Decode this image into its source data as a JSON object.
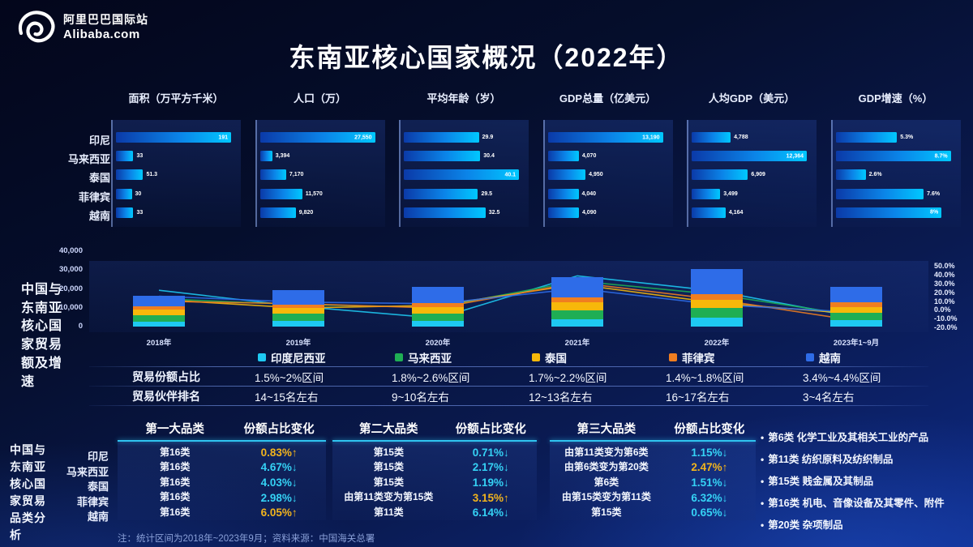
{
  "header": {
    "logo_cn": "阿里巴巴国际站",
    "logo_en": "Alibaba.com",
    "title": "东南亚核心国家概况（2022年）"
  },
  "countries": [
    "印尼",
    "马来西亚",
    "泰国",
    "菲律宾",
    "越南"
  ],
  "chart_data": [
    {
      "type": "bar",
      "orientation": "horizontal",
      "title": "面积（万平方千米）",
      "categories": [
        "印尼",
        "马来西亚",
        "泰国",
        "菲律宾",
        "越南"
      ],
      "values": [
        191,
        33,
        51.3,
        30,
        33
      ],
      "labels": [
        "191",
        "33",
        "51.3",
        "30",
        "33"
      ]
    },
    {
      "type": "bar",
      "orientation": "horizontal",
      "title": "人口（万）",
      "categories": [
        "印尼",
        "马来西亚",
        "泰国",
        "菲律宾",
        "越南"
      ],
      "values": [
        27550,
        3394,
        7170,
        11570,
        9820
      ],
      "labels": [
        "27,550",
        "3,394",
        "7,170",
        "11,570",
        "9,820"
      ]
    },
    {
      "type": "bar",
      "orientation": "horizontal",
      "title": "平均年龄（岁）",
      "categories": [
        "印尼",
        "马来西亚",
        "泰国",
        "菲律宾",
        "越南"
      ],
      "values": [
        29.9,
        30.4,
        40.1,
        29.5,
        32.5
      ],
      "labels": [
        "29.9",
        "30.4",
        "40.1",
        "29.5",
        "32.5"
      ]
    },
    {
      "type": "bar",
      "orientation": "horizontal",
      "title": "GDP总量（亿美元）",
      "categories": [
        "印尼",
        "马来西亚",
        "泰国",
        "菲律宾",
        "越南"
      ],
      "values": [
        13190,
        4070,
        4950,
        4040,
        4090
      ],
      "labels": [
        "13,190",
        "4,070",
        "4,950",
        "4,040",
        "4,090"
      ]
    },
    {
      "type": "bar",
      "orientation": "horizontal",
      "title": "人均GDP（美元）",
      "categories": [
        "印尼",
        "马来西亚",
        "泰国",
        "菲律宾",
        "越南"
      ],
      "values": [
        4788,
        12364,
        6909,
        3499,
        4164
      ],
      "labels": [
        "4,788",
        "12,364",
        "6,909",
        "3,499",
        "4,164"
      ]
    },
    {
      "type": "bar",
      "orientation": "horizontal",
      "title": "GDP增速（%）",
      "categories": [
        "印尼",
        "马来西亚",
        "泰国",
        "菲律宾",
        "越南"
      ],
      "values": [
        5.3,
        8.7,
        2.6,
        7.6,
        8
      ],
      "labels": [
        "5.3%",
        "8.7%",
        "2.6%",
        "7.6%",
        "8%"
      ]
    },
    {
      "type": "bar+line",
      "stacked": true,
      "title": "中国与东南亚核心国家贸易额及增速",
      "categories": [
        "2018年",
        "2019年",
        "2020年",
        "2021年",
        "2022年",
        "2023年1~9月"
      ],
      "stack_series": [
        {
          "name": "印度尼西亚",
          "color": "#1ec9f2",
          "values": [
            2600,
            3000,
            3100,
            3900,
            4700,
            3500
          ]
        },
        {
          "name": "马来西亚",
          "color": "#1fae54",
          "values": [
            3500,
            3800,
            3900,
            4600,
            5000,
            3700
          ]
        },
        {
          "name": "泰国",
          "color": "#f7b80a",
          "values": [
            3000,
            3200,
            3400,
            4300,
            4500,
            3300
          ]
        },
        {
          "name": "菲律宾",
          "color": "#f07e20",
          "values": [
            1700,
            1800,
            2100,
            2700,
            2900,
            2200
          ]
        },
        {
          "name": "越南",
          "color": "#2e6ce8",
          "values": [
            5700,
            7700,
            8500,
            10500,
            13400,
            8300
          ]
        }
      ],
      "line_series": [
        {
          "name": "印度尼西亚",
          "color": "#1ec9f2",
          "values": [
            23,
            4,
            -10,
            40,
            22,
            -9
          ]
        },
        {
          "name": "马来西亚",
          "color": "#1fae54",
          "values": [
            13,
            6,
            3,
            34,
            18,
            -7
          ]
        },
        {
          "name": "泰国",
          "color": "#f7b80a",
          "values": [
            12,
            2,
            5,
            30,
            8,
            -5
          ]
        },
        {
          "name": "菲律宾",
          "color": "#f07e20",
          "values": [
            10,
            7,
            2,
            32,
            12,
            -13
          ]
        },
        {
          "name": "越南",
          "color": "#2e6ce8",
          "values": [
            16,
            9,
            7,
            25,
            6,
            -3
          ]
        }
      ],
      "y_left": {
        "ticks": [
          "40,000",
          "30,000",
          "20,000",
          "10,000",
          "0"
        ],
        "max": 40000,
        "min": 0
      },
      "y_right": {
        "ticks": [
          "50.0%",
          "40.0%",
          "30.0%",
          "20.0%",
          "10.0%",
          "0.0%",
          "-10.0%",
          "-20.0%"
        ],
        "max": 50,
        "min": -20
      },
      "legend": [
        "印度尼西亚",
        "马来西亚",
        "泰国",
        "菲律宾",
        "越南"
      ]
    }
  ],
  "trade": {
    "side_label": "中国与东南亚核心国家贸易额及增速",
    "table_rows": [
      {
        "label": "贸易份额占比",
        "values": [
          "1.5%~2%区间",
          "1.8%~2.6%区间",
          "1.7%~2.2%区间",
          "1.4%~1.8%区间",
          "3.4%~4.4%区间"
        ]
      },
      {
        "label": "贸易伙伴排名",
        "values": [
          "14~15名左右",
          "9~10名左右",
          "12~13名左右",
          "16~17名左右",
          "3~4名左右"
        ]
      }
    ]
  },
  "category_section": {
    "side_label": "中国与东南亚核心国家贸易品类分析",
    "tables": [
      {
        "col1": "第一大品类",
        "col2": "份额占比变化",
        "rows": [
          {
            "category": "第16类",
            "change": "0.83%",
            "dir": "up"
          },
          {
            "category": "第16类",
            "change": "4.67%",
            "dir": "down"
          },
          {
            "category": "第16类",
            "change": "4.03%",
            "dir": "down"
          },
          {
            "category": "第16类",
            "change": "2.98%",
            "dir": "down"
          },
          {
            "category": "第16类",
            "change": "6.05%",
            "dir": "up"
          }
        ]
      },
      {
        "col1": "第二大品类",
        "col2": "份额占比变化",
        "rows": [
          {
            "category": "第15类",
            "change": "0.71%",
            "dir": "down"
          },
          {
            "category": "第15类",
            "change": "2.17%",
            "dir": "down"
          },
          {
            "category": "第15类",
            "change": "1.19%",
            "dir": "down"
          },
          {
            "category": "由第11类变为第15类",
            "change": "3.15%",
            "dir": "up"
          },
          {
            "category": "第11类",
            "change": "6.14%",
            "dir": "down"
          }
        ]
      },
      {
        "col1": "第三大品类",
        "col2": "份额占比变化",
        "rows": [
          {
            "category": "由第11类变为第6类",
            "change": "1.15%",
            "dir": "down"
          },
          {
            "category": "由第6类变为第20类",
            "change": "2.47%",
            "dir": "up"
          },
          {
            "category": "第6类",
            "change": "1.51%",
            "dir": "down"
          },
          {
            "category": "由第15类变为第11类",
            "change": "6.32%",
            "dir": "down"
          },
          {
            "category": "第15类",
            "change": "0.65%",
            "dir": "down"
          }
        ]
      }
    ]
  },
  "category_legend": [
    "第6类 化学工业及其相关工业的产品",
    "第11类 纺织原料及纺织制品",
    "第15类 贱金属及其制品",
    "第16类 机电、音像设备及其零件、附件",
    "第20类 杂项制品"
  ],
  "footnote": "注：统计区间为2018年~2023年9月；资料来源：中国海关总署"
}
